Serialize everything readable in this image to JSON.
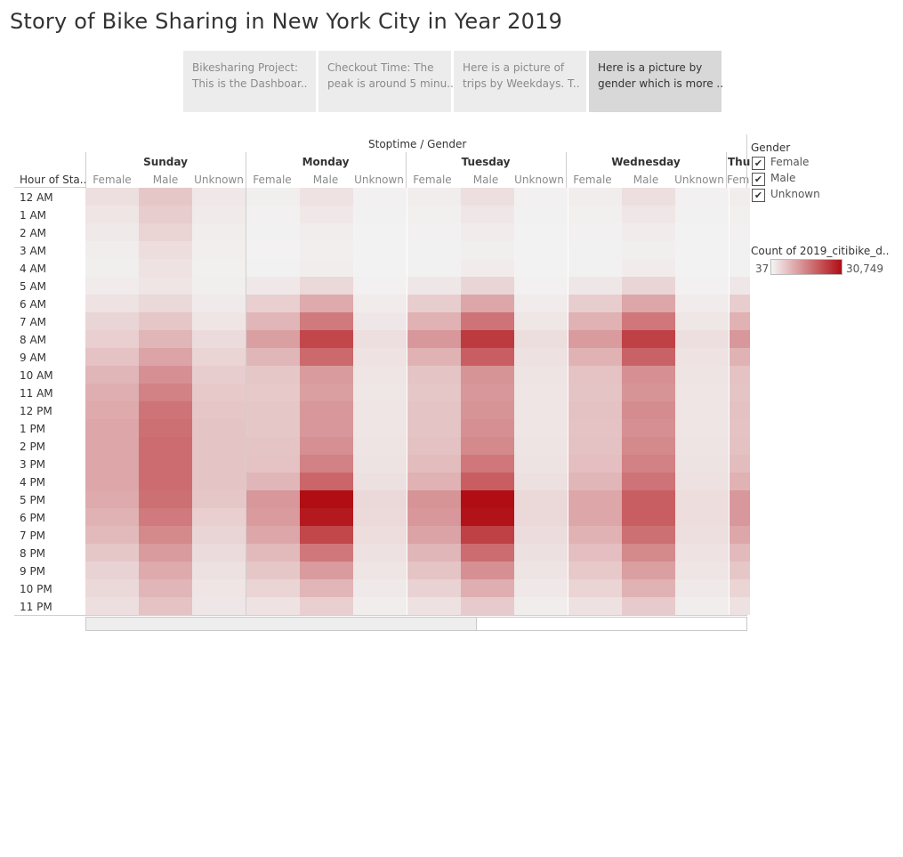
{
  "title": "Story of Bike Sharing in New York City in Year 2019",
  "story_points": [
    {
      "line1": "Bikesharing Project:",
      "line2": "This is the  Dashboar..",
      "active": false
    },
    {
      "line1": "Checkout Time: The",
      "line2": "peak is around 5 minu..",
      "active": false
    },
    {
      "line1": "Here is a picture of",
      "line2": "trips by Weekdays. T..",
      "active": false
    },
    {
      "line1": "Here is a picture by",
      "line2": "gender which is more ..",
      "active": true
    }
  ],
  "header": {
    "top_label": "Stoptime / Gender",
    "row_header": "Hour of Sta..",
    "days": [
      "Sunday",
      "Monday",
      "Tuesday",
      "Wednesday",
      "Thu"
    ],
    "genders": [
      "Female",
      "Male",
      "Unknown"
    ],
    "partial_gender": "Fem"
  },
  "legend": {
    "gender_title": "Gender",
    "gender_items": [
      "Female",
      "Male",
      "Unknown"
    ],
    "check_glyph": "✔",
    "color_title": "Count of 2019_citibike_d..",
    "min_label": "37",
    "max_label": "30,749",
    "min_color": "#f5f5f5",
    "max_color": "#b00e14"
  },
  "chart_data": {
    "type": "heatmap",
    "title": "",
    "x_header": "Stoptime / Gender",
    "y_header": "Hour of Sta..",
    "color_legend": "Count of 2019_citibike_d..",
    "color_range": [
      37,
      30749
    ],
    "hours": [
      "12 AM",
      "1 AM",
      "2 AM",
      "3 AM",
      "4 AM",
      "5 AM",
      "6 AM",
      "7 AM",
      "8 AM",
      "9 AM",
      "10 AM",
      "11 AM",
      "12 PM",
      "1 PM",
      "2 PM",
      "3 PM",
      "4 PM",
      "5 PM",
      "6 PM",
      "7 PM",
      "8 PM",
      "9 PM",
      "10 PM",
      "11 PM"
    ],
    "columns": [
      {
        "day": "Sunday",
        "gender": "Female",
        "values": [
          1800,
          1200,
          800,
          500,
          400,
          600,
          1500,
          2800,
          3500,
          5000,
          6500,
          7500,
          8000,
          8500,
          8500,
          8500,
          8500,
          8000,
          7000,
          6000,
          4500,
          3200,
          2400,
          1800
        ]
      },
      {
        "day": "Sunday",
        "gender": "Male",
        "values": [
          4500,
          3800,
          3000,
          2000,
          1500,
          1200,
          2500,
          4500,
          6500,
          8800,
          11500,
          13500,
          15500,
          16000,
          16500,
          16500,
          16500,
          16000,
          14500,
          12500,
          10000,
          8000,
          6500,
          5000
        ]
      },
      {
        "day": "Sunday",
        "gender": "Unknown",
        "values": [
          900,
          700,
          500,
          350,
          300,
          400,
          700,
          1200,
          2200,
          3000,
          3800,
          4200,
          4600,
          4800,
          4800,
          4800,
          4800,
          4500,
          3500,
          2800,
          2200,
          1600,
          1200,
          1000
        ]
      },
      {
        "day": "Monday",
        "gender": "Female",
        "values": [
          400,
          250,
          150,
          120,
          150,
          900,
          3500,
          6500,
          9500,
          6500,
          4500,
          4200,
          4500,
          4500,
          4800,
          5000,
          6500,
          10500,
          10000,
          8500,
          6000,
          4500,
          3000,
          1500
        ]
      },
      {
        "day": "Monday",
        "gender": "Male",
        "values": [
          1500,
          900,
          500,
          350,
          500,
          2500,
          8000,
          14500,
          22000,
          17000,
          10000,
          9500,
          10500,
          10500,
          11500,
          13500,
          17500,
          30749,
          29000,
          22000,
          15000,
          10000,
          6500,
          3500
        ]
      },
      {
        "day": "Monday",
        "gender": "Unknown",
        "values": [
          200,
          150,
          100,
          80,
          80,
          200,
          600,
          1000,
          1800,
          1500,
          1200,
          1100,
          1200,
          1200,
          1300,
          1400,
          1700,
          2400,
          2300,
          2000,
          1600,
          1200,
          800,
          500
        ]
      },
      {
        "day": "Tuesday",
        "gender": "Female",
        "values": [
          500,
          300,
          200,
          150,
          150,
          1000,
          3800,
          7000,
          10500,
          7000,
          4800,
          4500,
          4800,
          4800,
          5200,
          5800,
          7000,
          11000,
          10500,
          9000,
          6500,
          4800,
          3200,
          1600
        ]
      },
      {
        "day": "Tuesday",
        "gender": "Male",
        "values": [
          1800,
          1000,
          600,
          400,
          600,
          2800,
          8500,
          15500,
          24000,
          18500,
          11000,
          10500,
          11000,
          11500,
          12500,
          15000,
          18500,
          30749,
          30000,
          23000,
          16500,
          11500,
          7500,
          4000
        ]
      },
      {
        "day": "Tuesday",
        "gender": "Unknown",
        "values": [
          200,
          150,
          100,
          80,
          80,
          200,
          600,
          1100,
          1900,
          1600,
          1300,
          1200,
          1200,
          1200,
          1300,
          1400,
          1700,
          2500,
          2400,
          2100,
          1700,
          1300,
          900,
          500
        ]
      },
      {
        "day": "Wednesday",
        "gender": "Female",
        "values": [
          500,
          300,
          200,
          150,
          150,
          1000,
          3800,
          7000,
          10000,
          7000,
          5000,
          4800,
          5200,
          5000,
          5200,
          5500,
          6500,
          8500,
          8500,
          7000,
          5500,
          4200,
          3000,
          1600
        ]
      },
      {
        "day": "Wednesday",
        "gender": "Male",
        "values": [
          1800,
          1000,
          600,
          400,
          600,
          2800,
          8500,
          15000,
          23000,
          18000,
          11500,
          11000,
          12000,
          11500,
          12500,
          13500,
          15500,
          18500,
          18500,
          16000,
          12500,
          9500,
          7000,
          4000
        ]
      },
      {
        "day": "Wednesday",
        "gender": "Unknown",
        "values": [
          200,
          150,
          100,
          80,
          80,
          200,
          600,
          1100,
          1800,
          1500,
          1300,
          1200,
          1200,
          1200,
          1300,
          1400,
          1600,
          2000,
          2000,
          1800,
          1500,
          1200,
          800,
          500
        ]
      },
      {
        "day": "Thu",
        "gender": "Female",
        "values": [
          500,
          300,
          200,
          150,
          150,
          1000,
          3800,
          7000,
          10500,
          7000,
          5000,
          4800,
          5200,
          5000,
          5200,
          5800,
          7000,
          10500,
          10500,
          8500,
          6000,
          4500,
          3000,
          1600
        ]
      }
    ]
  }
}
